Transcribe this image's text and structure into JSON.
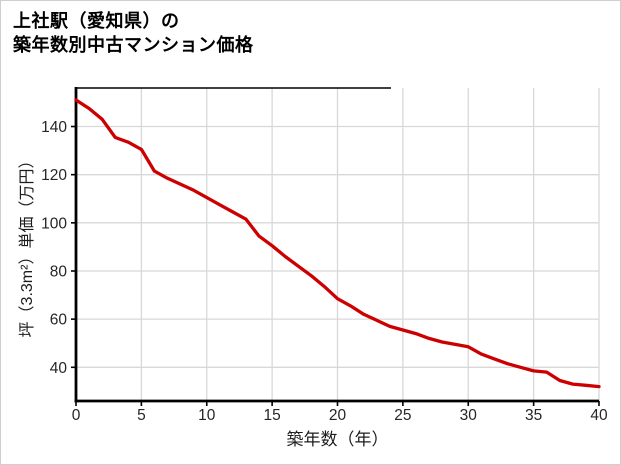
{
  "title": {
    "line1": "上社駅（愛知県）の",
    "line2": "築年数別中古マンション価格"
  },
  "chart_data": {
    "type": "line",
    "title": "上社駅（愛知県）の 築年数別中古マンション価格",
    "xlabel": "築年数（年）",
    "ylabel": "坪（3.3m²）単価（万円）",
    "x": [
      0,
      1,
      2,
      3,
      4,
      5,
      6,
      7,
      8,
      9,
      10,
      11,
      12,
      13,
      14,
      15,
      16,
      17,
      18,
      19,
      20,
      21,
      22,
      23,
      24,
      25,
      26,
      27,
      28,
      29,
      30,
      31,
      32,
      33,
      34,
      35,
      36,
      37,
      38,
      39,
      40
    ],
    "values": [
      151,
      147.5,
      143,
      135.5,
      133.5,
      130.5,
      121.5,
      118.5,
      116,
      113.5,
      110.5,
      107.5,
      104.5,
      101.5,
      94.5,
      90.5,
      86,
      82,
      78,
      73.5,
      68.5,
      65.5,
      62,
      59.5,
      57,
      55.5,
      54,
      52,
      50.5,
      49.5,
      48.5,
      45.5,
      43.5,
      41.5,
      40,
      38.5,
      38,
      34.5,
      33,
      32.5,
      32
    ],
    "x_ticks": [
      0,
      5,
      10,
      15,
      20,
      25,
      30,
      35,
      40
    ],
    "y_ticks": [
      40,
      60,
      80,
      100,
      120,
      140
    ],
    "xlim": [
      0,
      40
    ],
    "ylim": [
      26,
      156
    ],
    "grid": true,
    "legend": "none",
    "line_color": "#cc0000",
    "grid_color": "#d8d8d8",
    "axis_color": "#000000",
    "tick_label_color": "#262626"
  }
}
